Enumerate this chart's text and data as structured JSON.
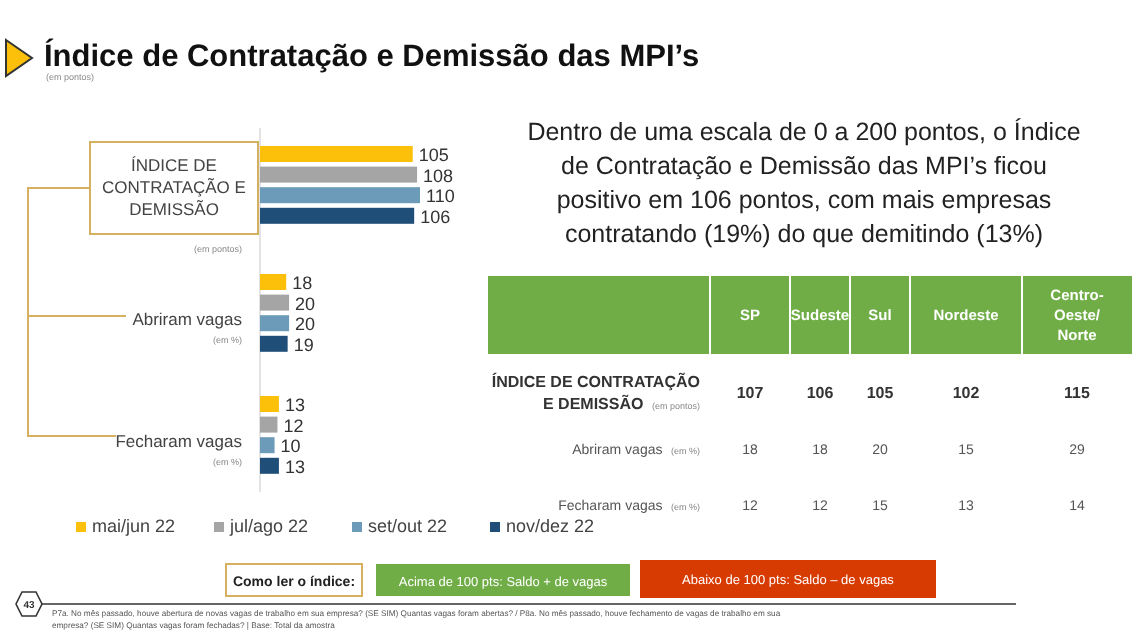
{
  "chart_data": [
    {
      "type": "bar",
      "orientation": "horizontal",
      "title": "Índice de Contratação e Demissão das MPI’s",
      "subtitle": "(em pontos)",
      "categories": [
        "ÍNDICE DE CONTRATAÇÃO E DEMISSÃO",
        "Abriram vagas",
        "Fecharam vagas"
      ],
      "series": [
        {
          "name": "mai/jun 22",
          "color": "#fcc00a",
          "values": [
            105,
            18,
            13
          ]
        },
        {
          "name": "jul/ago 22",
          "color": "#a5a5a5",
          "values": [
            108,
            20,
            12
          ]
        },
        {
          "name": "set/out 22",
          "color": "#6b9bb8",
          "values": [
            110,
            20,
            10
          ]
        },
        {
          "name": "nov/dez 22",
          "color": "#1f4e79",
          "values": [
            106,
            19,
            13
          ]
        }
      ],
      "data_labels": true,
      "legend": "bottom left",
      "annotations": [
        "(em pontos)",
        "(em %)",
        "(em %)",
        "43",
        "P7a. No mês passado, houve abertura de novas vagas de trabalho em sua empresa? (SE SIM) Quantas vagas foram abertas? / P8a. No mês passado, houve fechamento de vagas de trabalho em sua empresa? (SE SIM) Quantas vagas foram fechadas?  |  Base: Total da amostra"
      ]
    },
    {
      "type": "heatmap",
      "data_labels": true,
      "categories": [
        "SP",
        "Sudeste",
        "Sul",
        "Nordeste",
        "Centro-Oeste/Norte"
      ],
      "y_categories": [
        "ÍNDICE DE CONTRATAÇÃO E DEMISSÃO (em pontos)",
        "Abriram vagas (em %)",
        "Fecharam vagas (em %)"
      ],
      "cells": [
        [
          107,
          106,
          105,
          102,
          115
        ],
        [
          18,
          18,
          20,
          15,
          29
        ],
        [
          12,
          12,
          15,
          13,
          14
        ]
      ],
      "annotations": [
        "Dentro de uma escala de 0 a 200 pontos, o Índice de Contratação e Demissão das MPI’s ficou positivo em 106 pontos, com mais empresas contratando (19%) do que demitindo (13%)",
        "Como ler o índice:",
        "Acima de 100 pts: Saldo + de vagas",
        "Abaixo de 100 pts: Saldo – de vagas"
      ]
    }
  ]
}
